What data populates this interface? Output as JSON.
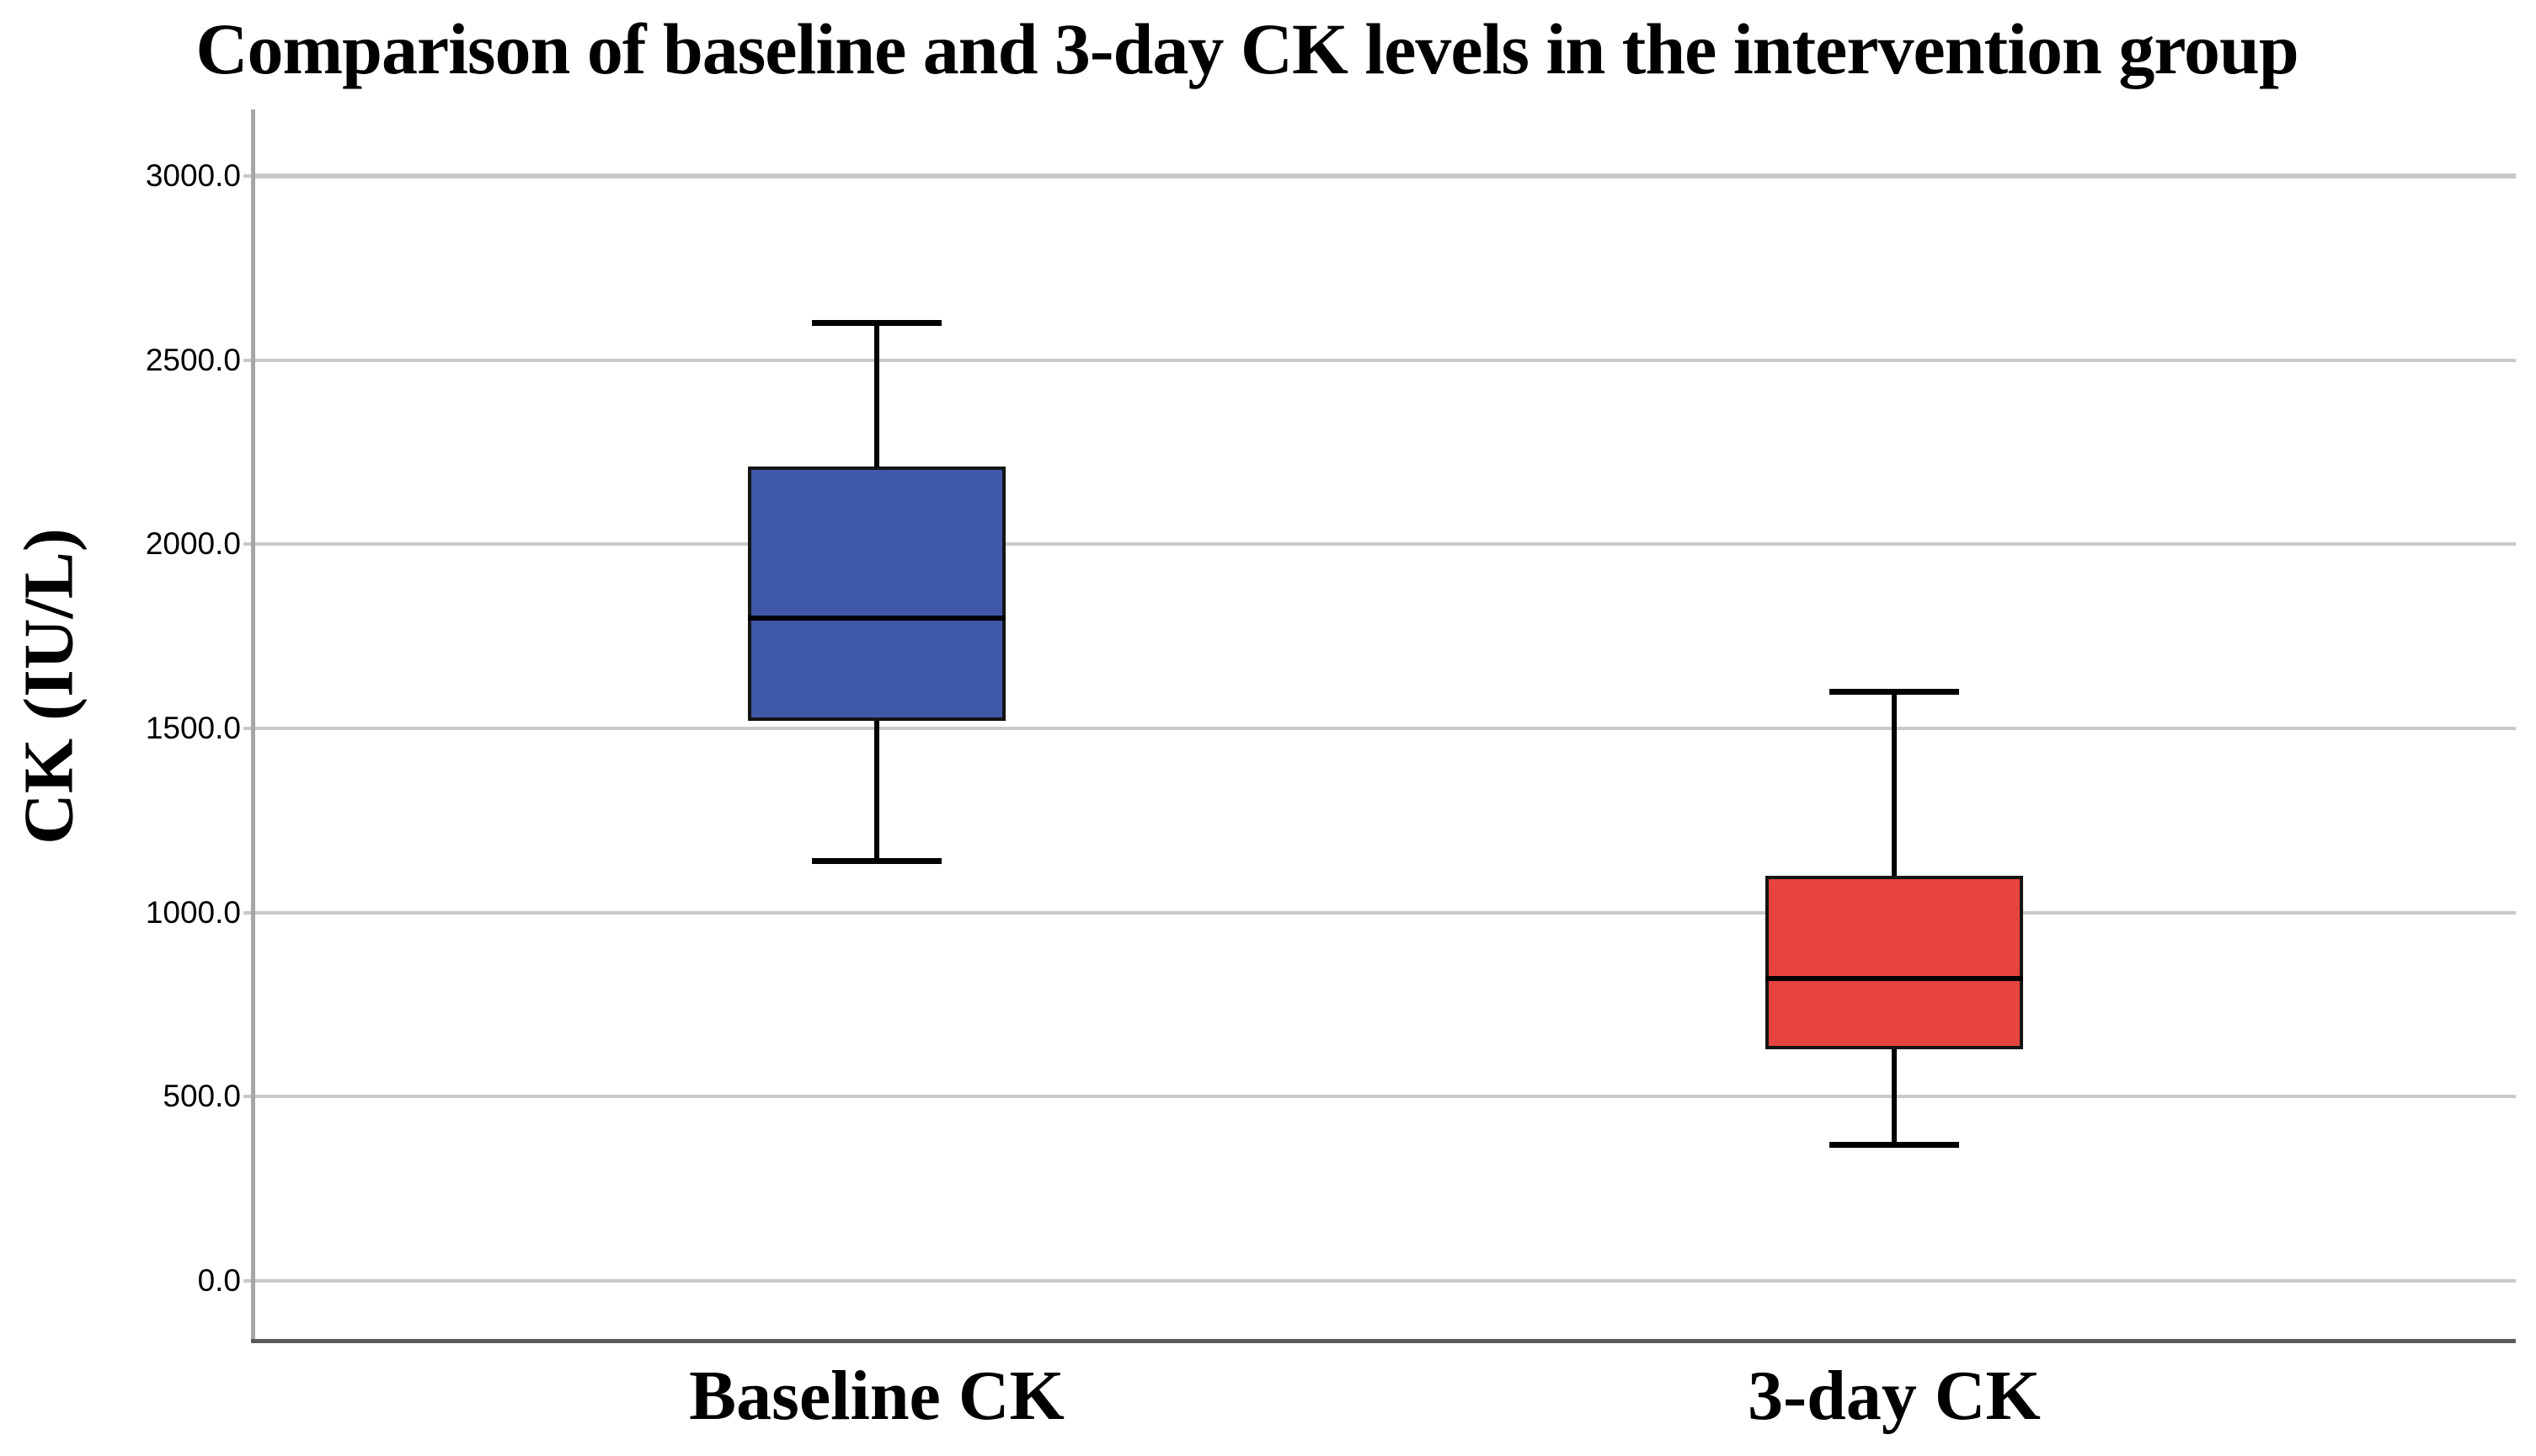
{
  "figure": {
    "title": "Comparison of baseline and 3-day CK levels in the intervention group"
  },
  "y_axis": {
    "label": "CK (IU/L)",
    "tick_labels": [
      "3000.0",
      "2500.0",
      "2000.0",
      "1500.0",
      "1000.0",
      "500.0",
      "0.0"
    ]
  },
  "x_axis": {
    "categories": [
      "Baseline CK",
      "3-day CK"
    ]
  },
  "chart_data": {
    "type": "boxplot",
    "title": "Comparison of baseline and 3-day CK levels in the intervention group",
    "xlabel": "",
    "ylabel": "CK (IU/L)",
    "ylim": [
      0,
      3000
    ],
    "ytick_step": 500,
    "grid": true,
    "legend": "none",
    "categories": [
      "Baseline CK",
      "3-day CK"
    ],
    "series": [
      {
        "name": "Baseline CK",
        "min": 1140,
        "q1": 1520,
        "median": 1800,
        "q3": 2210,
        "max": 2600,
        "fill_color": "#3F58A8"
      },
      {
        "name": "3-day CK",
        "min": 370,
        "q1": 630,
        "median": 820,
        "q3": 1100,
        "max": 1600,
        "fill_color": "#E8433E"
      }
    ],
    "colors": {
      "baseline_box": "#3F58A8",
      "day3_box": "#E8433E",
      "box_border": "#141414",
      "whisker": "#000000",
      "gridline": "#C9C9C9",
      "y_axis_line": "#A6A6A6",
      "x_axis_line": "#595959",
      "text": "#000000",
      "background": "#FFFFFF"
    }
  }
}
